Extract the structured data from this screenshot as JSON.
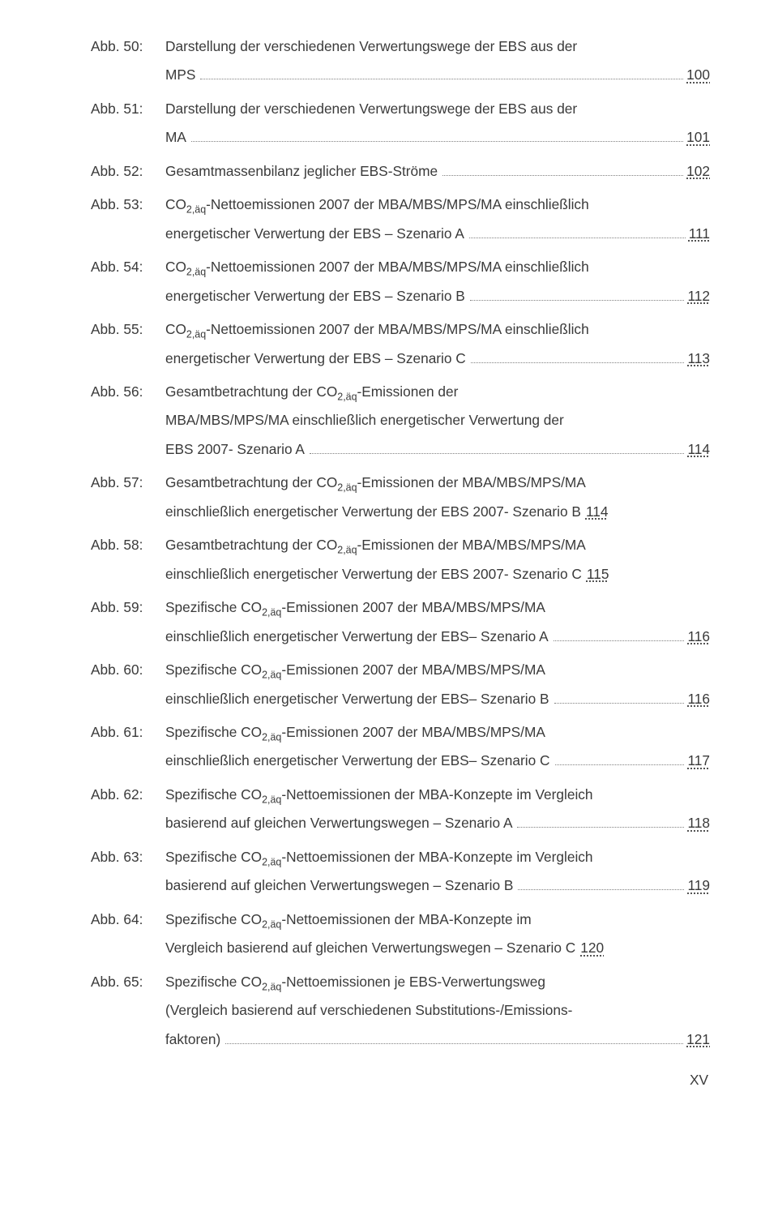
{
  "entries": [
    {
      "label": "Abb. 50:",
      "lines": [
        {
          "text": "Darstellung der verschiedenen Verwertungswege der EBS aus der"
        },
        {
          "text": "MPS",
          "leader": true,
          "page": "100"
        }
      ]
    },
    {
      "label": "Abb. 51:",
      "lines": [
        {
          "text": "Darstellung der verschiedenen Verwertungswege der EBS aus der"
        },
        {
          "text": "MA",
          "leader": true,
          "page": "101"
        }
      ]
    },
    {
      "label": "Abb. 52:",
      "lines": [
        {
          "text": "Gesamtmassenbilanz jeglicher EBS-Ströme",
          "leader": true,
          "page": "102"
        }
      ]
    },
    {
      "label": "Abb. 53:",
      "lines": [
        {
          "text_html": "CO<sub>2,äq</sub>-Nettoemissionen 2007 der MBA/MBS/MPS/MA einschließlich"
        },
        {
          "text": "energetischer Verwertung der EBS – Szenario A",
          "leader": true,
          "page": "111"
        }
      ]
    },
    {
      "label": "Abb. 54:",
      "lines": [
        {
          "text_html": "CO<sub>2,äq</sub>-Nettoemissionen 2007 der MBA/MBS/MPS/MA einschließlich"
        },
        {
          "text": "energetischer Verwertung der EBS – Szenario B",
          "leader": true,
          "page": "112"
        }
      ]
    },
    {
      "label": "Abb. 55:",
      "lines": [
        {
          "text_html": "CO<sub>2,äq</sub>-Nettoemissionen 2007 der MBA/MBS/MPS/MA einschließlich"
        },
        {
          "text": "energetischer Verwertung der EBS – Szenario C",
          "leader": true,
          "page": "113"
        }
      ]
    },
    {
      "label": "Abb. 56:",
      "lines": [
        {
          "text_html": "Gesamtbetrachtung der CO<sub>2,äq</sub>-Emissionen der"
        },
        {
          "text": "MBA/MBS/MPS/MA einschließlich energetischer Verwertung der"
        },
        {
          "text": "EBS 2007- Szenario A",
          "leader": true,
          "page": "114"
        }
      ]
    },
    {
      "label": "Abb. 57:",
      "lines": [
        {
          "text_html": "Gesamtbetrachtung der CO<sub>2,äq</sub>-Emissionen der MBA/MBS/MPS/MA"
        },
        {
          "text": "einschließlich energetischer Verwertung der EBS 2007- Szenario B",
          "page": "114"
        }
      ]
    },
    {
      "label": "Abb. 58:",
      "lines": [
        {
          "text_html": "Gesamtbetrachtung der CO<sub>2,äq</sub>-Emissionen der MBA/MBS/MPS/MA"
        },
        {
          "text": "einschließlich energetischer Verwertung der EBS 2007- Szenario C",
          "page": "115"
        }
      ]
    },
    {
      "label": "Abb. 59:",
      "lines": [
        {
          "text_html": "Spezifische CO<sub>2,äq</sub>-Emissionen 2007 der MBA/MBS/MPS/MA"
        },
        {
          "text": "einschließlich energetischer Verwertung der EBS– Szenario A",
          "leader": true,
          "page": "116"
        }
      ]
    },
    {
      "label": "Abb. 60:",
      "lines": [
        {
          "text_html": "Spezifische CO<sub>2,äq</sub>-Emissionen 2007 der MBA/MBS/MPS/MA"
        },
        {
          "text": "einschließlich energetischer Verwertung der EBS– Szenario B",
          "leader": true,
          "page": "116"
        }
      ]
    },
    {
      "label": "Abb. 61:",
      "lines": [
        {
          "text_html": "Spezifische CO<sub>2,äq</sub>-Emissionen 2007 der MBA/MBS/MPS/MA"
        },
        {
          "text": "einschließlich energetischer Verwertung der EBS– Szenario C",
          "leader": true,
          "page": "117"
        }
      ]
    },
    {
      "label": "Abb. 62:",
      "lines": [
        {
          "text_html": "Spezifische CO<sub>2,äq</sub>-Nettoemissionen der MBA-Konzepte im Vergleich"
        },
        {
          "text": "basierend auf gleichen Verwertungswegen – Szenario A",
          "leader": true,
          "page": "118"
        }
      ]
    },
    {
      "label": "Abb. 63:",
      "lines": [
        {
          "text_html": "Spezifische CO<sub>2,äq</sub>-Nettoemissionen der MBA-Konzepte im Vergleich"
        },
        {
          "text": "basierend auf gleichen Verwertungswegen – Szenario B",
          "leader": true,
          "page": "119"
        }
      ]
    },
    {
      "label": "Abb. 64:",
      "lines": [
        {
          "text_html": "Spezifische CO<sub>2,äq</sub>-Nettoemissionen der MBA-Konzepte im"
        },
        {
          "text": "Vergleich basierend auf gleichen Verwertungswegen – Szenario C",
          "page": "120"
        }
      ]
    },
    {
      "label": "Abb. 65:",
      "lines": [
        {
          "text_html": "Spezifische CO<sub>2,äq</sub>-Nettoemissionen je EBS-Verwertungsweg"
        },
        {
          "text": "(Vergleich basierend auf verschiedenen Substitutions-/Emissions-"
        },
        {
          "text": "faktoren)",
          "leader": true,
          "page": "121"
        }
      ]
    }
  ],
  "footer": "XV"
}
